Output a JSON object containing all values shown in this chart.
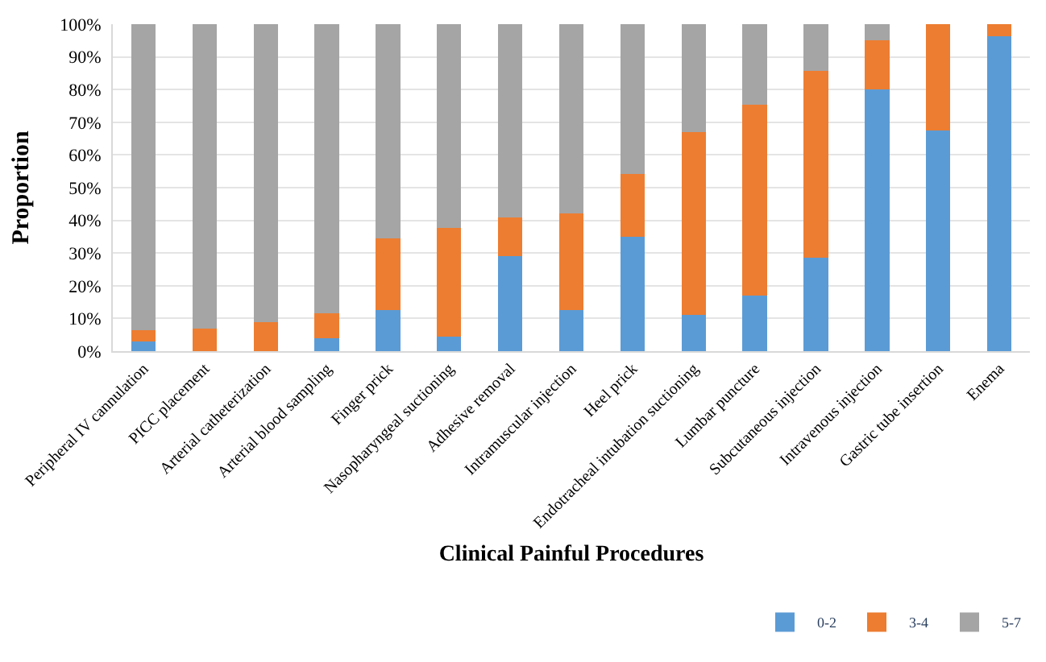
{
  "chart_data": {
    "type": "bar",
    "stacked": true,
    "xlabel": "Clinical Painful Procedures",
    "ylabel": "Proportion",
    "categories": [
      "Peripheral IV cannulation",
      "PICC placement",
      "Arterial catheterization",
      "Arterial blood sampling",
      "Finger prick",
      "Nasopharyngeal suctioning",
      "Adhesive removal",
      "Intramuscular injection",
      "Heel prick",
      "Endotracheal intubation suctioning",
      "Lumbar puncture",
      "Subcutaneous injection",
      "Intravenous injection",
      "Gastric tube insertion",
      "Enema"
    ],
    "series": [
      {
        "name": "0-2",
        "color": "#5b9bd5",
        "values": [
          3,
          0,
          0,
          4,
          12.5,
          4.5,
          29,
          12.5,
          35,
          11,
          17,
          28.5,
          80,
          67.6,
          96.3
        ]
      },
      {
        "name": "3-4",
        "color": "#ed7d31",
        "values": [
          3.5,
          7,
          8.8,
          7.7,
          22,
          33.3,
          11.8,
          29.5,
          19.3,
          56,
          58.4,
          57.2,
          15,
          32.4,
          3.7
        ]
      },
      {
        "name": "5-7",
        "color": "#a5a5a5",
        "values": [
          93.5,
          93,
          91.2,
          88.3,
          65.5,
          62.2,
          59.2,
          58,
          45.7,
          33,
          24.6,
          14.3,
          5,
          0,
          0
        ]
      }
    ],
    "ylim": [
      0,
      100
    ],
    "yticks": [
      {
        "value": 0,
        "label": "0%"
      },
      {
        "value": 10,
        "label": "10%"
      },
      {
        "value": 20,
        "label": "20%"
      },
      {
        "value": 30,
        "label": "30%"
      },
      {
        "value": 40,
        "label": "40%"
      },
      {
        "value": 50,
        "label": "50%"
      },
      {
        "value": 60,
        "label": "60%"
      },
      {
        "value": 70,
        "label": "70%"
      },
      {
        "value": 80,
        "label": "80%"
      },
      {
        "value": 90,
        "label": "90%"
      },
      {
        "value": 100,
        "label": "100%"
      }
    ],
    "grid": "y",
    "legend": "bottom right"
  }
}
